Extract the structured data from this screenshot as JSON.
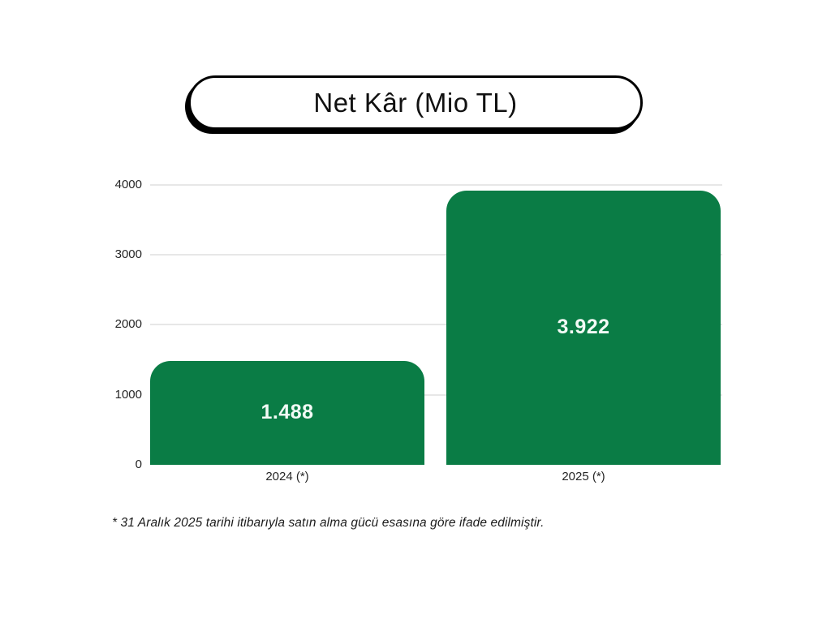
{
  "title": {
    "text": "Net Kâr (Mio TL)"
  },
  "chart_data": {
    "type": "bar",
    "title": "Net Kâr (Mio TL)",
    "categories": [
      "2024 (*)",
      "2025 (*)"
    ],
    "values": [
      1488,
      3922
    ],
    "value_labels": [
      "1.488",
      "3.922"
    ],
    "yticks": [
      "4000",
      "3000",
      "2000",
      "1000",
      "0"
    ],
    "ylim": [
      0,
      4000
    ],
    "xlabel": "",
    "ylabel": "",
    "grid": "horizontal",
    "legend": "none",
    "bar_color": "#0a7c45",
    "value_label_color": "#f2faf5",
    "gridline_color": "#e7e7e7"
  },
  "footnote": {
    "text": "* 31 Aralık 2025 tarihi itibarıyla satın alma gücü esasına göre ifade edilmiştir."
  }
}
